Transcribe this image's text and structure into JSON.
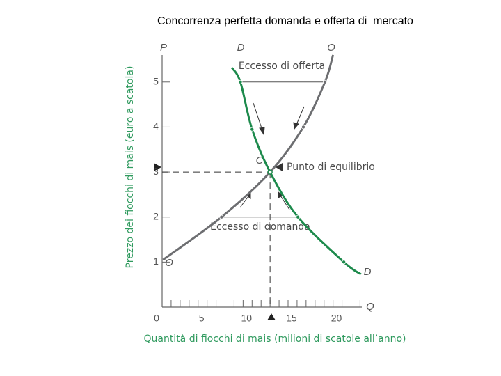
{
  "chart_data": {
    "type": "line",
    "title": "Concorrenza perfetta domanda e offerta di  mercato",
    "xlabel": "Quantità di fiocchi di mais (milioni di scatole all’anno)",
    "ylabel": "Prezzo dei fiocchi di mais (euro a scatola)",
    "xlim": [
      0,
      22.2
    ],
    "ylim": [
      0,
      5.6
    ],
    "xticks": [
      0,
      5,
      10,
      15,
      20
    ],
    "xminorticks": [
      1,
      2,
      3,
      4,
      6,
      7,
      8,
      9,
      11,
      12,
      13,
      14,
      16,
      17,
      18,
      19,
      21,
      22
    ],
    "yticks": [
      1,
      2,
      3,
      4,
      5
    ],
    "y_axis_name": "P",
    "x_axis_name": "Q",
    "series": [
      {
        "name": "D",
        "end_label": "D",
        "color": "#1d8a4c",
        "x": [
          7.75,
          8.7,
          10,
          12,
          15.1,
          20.2,
          22.1
        ],
        "values": [
          5.32,
          5,
          3.95,
          3,
          2,
          1,
          0.73
        ]
      },
      {
        "name": "O",
        "end_label": "O",
        "color": "#6d6e71",
        "x": [
          0.1,
          6.6,
          12,
          15.7,
          18.1,
          19
        ],
        "values": [
          1.05,
          2,
          3,
          4,
          5,
          5.6
        ]
      }
    ],
    "equilibrium": {
      "label": "C",
      "text": "Punto di equilibrio",
      "x": 12,
      "y": 3
    },
    "excess_supply": "Eccesso di offerta",
    "excess_demand": "Eccesso di domanda"
  }
}
